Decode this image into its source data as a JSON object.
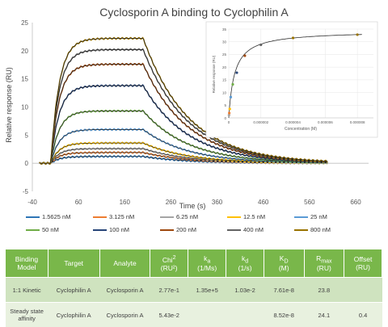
{
  "chart_data": [
    {
      "type": "line",
      "title": "Cyclosporin A binding to Cyclophilin A",
      "xlabel": "Time (s)",
      "ylabel": "Relative response (RU)",
      "xlim": [
        -40,
        700
      ],
      "ylim": [
        -5,
        25
      ],
      "xticks": [
        "-40",
        "60",
        "160",
        "260",
        "360",
        "460",
        "560",
        "660"
      ],
      "yticks": [
        "-5",
        "0",
        "5",
        "10",
        "15",
        "20",
        "25"
      ],
      "grid": false,
      "legend_position": "bottom",
      "association_start": 0,
      "dissociation_start": 200,
      "end_time": 600,
      "series": [
        {
          "name": "1.5625 nM",
          "color": "#2e75b6",
          "plateau": 1.2
        },
        {
          "name": "3.125 nM",
          "color": "#ed7d31",
          "plateau": 1.9
        },
        {
          "name": "6.25 nM",
          "color": "#a5a5a5",
          "plateau": 2.6
        },
        {
          "name": "12.5 nM",
          "color": "#ffc000",
          "plateau": 3.6
        },
        {
          "name": "25 nM",
          "color": "#5b9bd5",
          "plateau": 6.0
        },
        {
          "name": "50 nM",
          "color": "#70ad47",
          "plateau": 9.3
        },
        {
          "name": "100 nM",
          "color": "#264478",
          "plateau": 13.8
        },
        {
          "name": "200 nM",
          "color": "#9e480e",
          "plateau": 17.6
        },
        {
          "name": "400 nM",
          "color": "#636363",
          "plateau": 20.2
        },
        {
          "name": "800 nM",
          "color": "#997300",
          "plateau": 22.2
        }
      ]
    },
    {
      "type": "scatter",
      "title": "",
      "xlabel": "Concentration (M)",
      "ylabel": "Relative response (RU)",
      "xlim": [
        0,
        9e-06
      ],
      "ylim": [
        0,
        35
      ],
      "xticks": [
        "0",
        "0.000002",
        "0.000004",
        "0.000006",
        "0.000008"
      ],
      "yticks": [
        "0",
        "5",
        "10",
        "15",
        "20",
        "25",
        "30",
        "35"
      ],
      "grid": true,
      "fit_rmax": 34.3,
      "fit_kd": 3.6e-07,
      "points": [
        {
          "x": 1.56e-08,
          "y": 1.1,
          "color": "#a5a5a5"
        },
        {
          "x": 3.13e-08,
          "y": 1.9,
          "color": "#ed7d31"
        },
        {
          "x": 6.25e-08,
          "y": 3.5,
          "color": "#ffc000"
        },
        {
          "x": 1.25e-07,
          "y": 8.2,
          "color": "#5b9bd5"
        },
        {
          "x": 2.5e-07,
          "y": 13.2,
          "color": "#70ad47"
        },
        {
          "x": 5e-07,
          "y": 17.8,
          "color": "#264478"
        },
        {
          "x": 1e-06,
          "y": 24.5,
          "color": "#9e480e"
        },
        {
          "x": 2e-06,
          "y": 28.8,
          "color": "#636363"
        },
        {
          "x": 4e-06,
          "y": 31.5,
          "color": "#997300"
        },
        {
          "x": 8e-06,
          "y": 32.8,
          "color": "#997300"
        }
      ]
    }
  ],
  "table": {
    "headers": [
      {
        "main": "Binding Model",
        "sub": "",
        "sup": "",
        "extra": ""
      },
      {
        "main": "Target",
        "sub": "",
        "sup": "",
        "extra": ""
      },
      {
        "main": "Analyte",
        "sub": "",
        "sup": "",
        "extra": ""
      },
      {
        "main": "Chi",
        "sub": "",
        "sup": "2",
        "extra": "(RU²)"
      },
      {
        "main": "k",
        "sub": "a",
        "sup": "",
        "extra": "(1/Ms)"
      },
      {
        "main": "k",
        "sub": "d",
        "sup": "",
        "extra": "(1/s)"
      },
      {
        "main": "K",
        "sub": "D",
        "sup": "",
        "extra": "(M)"
      },
      {
        "main": "R",
        "sub": "max",
        "sup": "",
        "extra": "(RU)"
      },
      {
        "main": "Offset",
        "sub": "",
        "sup": "",
        "extra": "(RU)"
      }
    ],
    "rows": [
      [
        "1:1 Kinetic",
        "Cyclophilin A",
        "Cyclosporin A",
        "2.77e-1",
        "1.35e+5",
        "1.03e-2",
        "7.61e-8",
        "23.8",
        ""
      ],
      [
        "Steady state affinity",
        "Cyclophilin A",
        "Cyclosporin A",
        "5.43e-2",
        "",
        "",
        "8.52e-8",
        "24.1",
        "0.4"
      ]
    ]
  }
}
